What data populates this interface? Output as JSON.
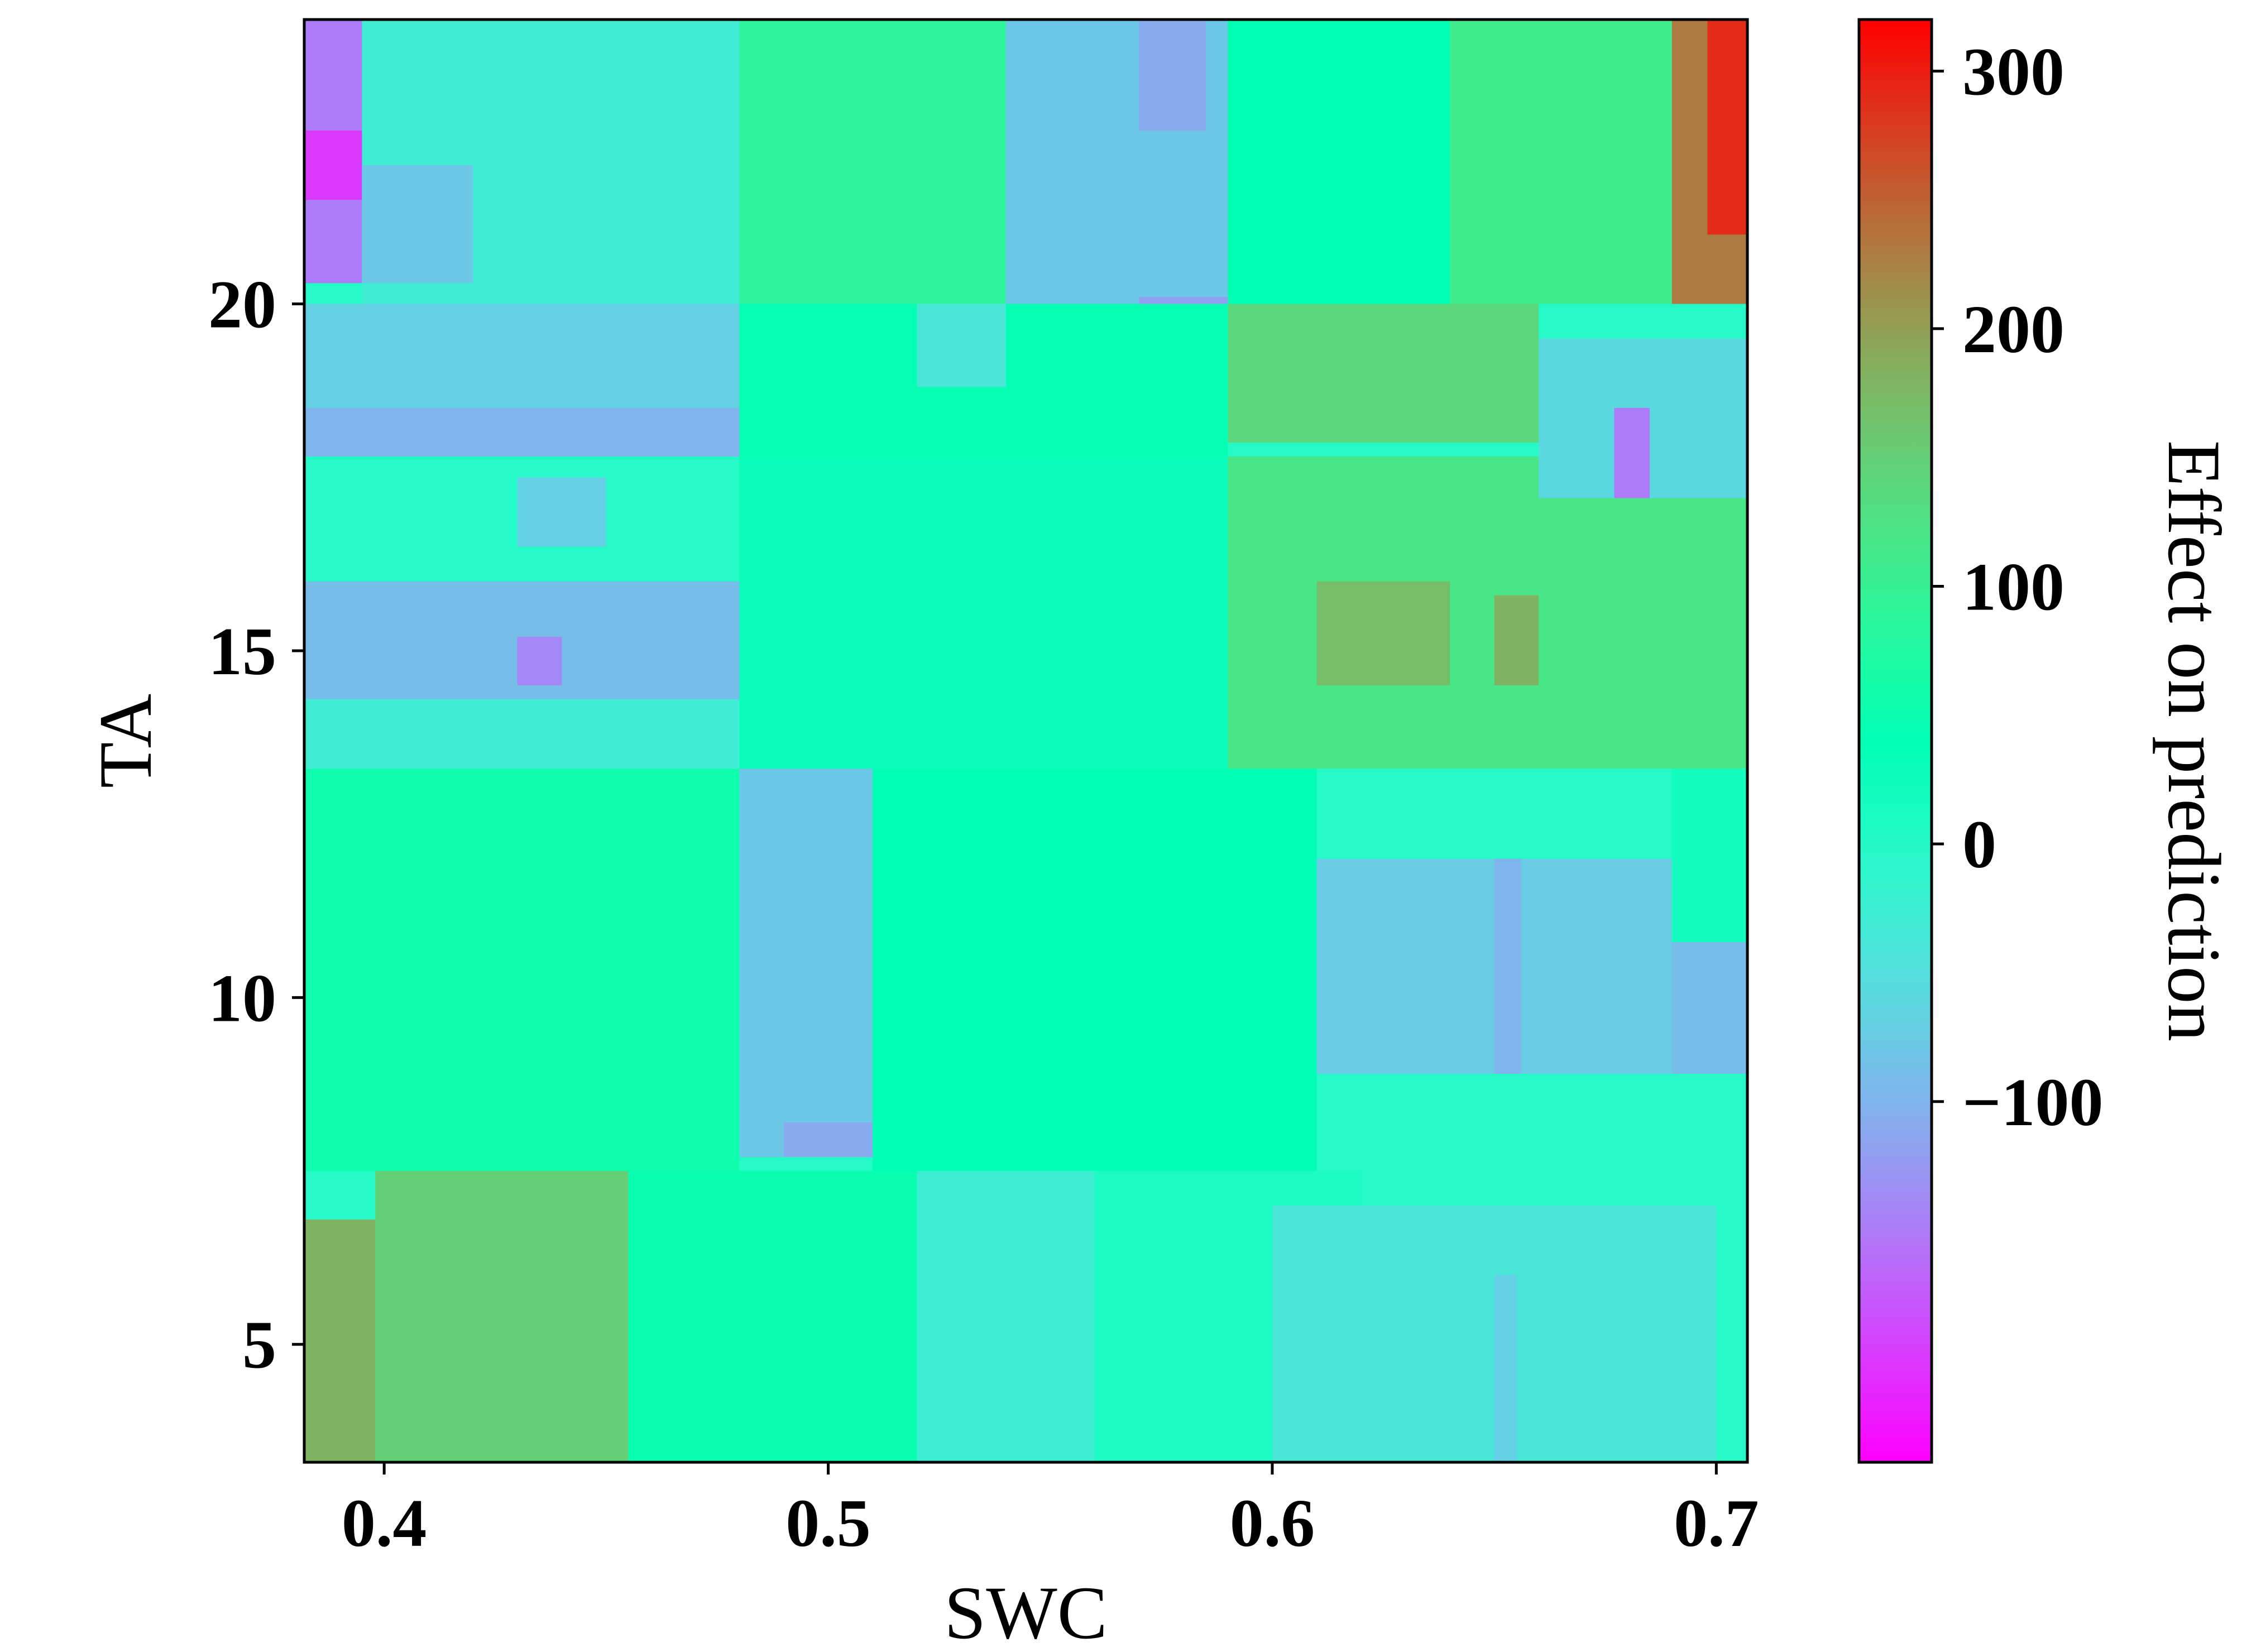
{
  "chart_data": {
    "type": "heatmap",
    "title": "",
    "xlabel": "SWC",
    "ylabel": "TA",
    "colorbar_label": "Effect on prediction",
    "xlim": [
      0.382,
      0.707
    ],
    "ylim": [
      3.3,
      24.1
    ],
    "x_ticks": [
      0.4,
      0.5,
      0.6,
      0.7
    ],
    "x_tick_labels": [
      "0.4",
      "0.5",
      "0.6",
      "0.7"
    ],
    "y_ticks": [
      5,
      10,
      15,
      20
    ],
    "y_tick_labels": [
      "5",
      "10",
      "15",
      "20"
    ],
    "colorbar_range": [
      -240,
      320
    ],
    "colorbar_ticks": [
      -100,
      0,
      100,
      200,
      300
    ],
    "colorbar_tick_labels": [
      "−100",
      "0",
      "100",
      "200",
      "300"
    ],
    "colormap": "rainbow",
    "regions": [
      {
        "x": [
          0.382,
          0.707
        ],
        "y": [
          3.3,
          24.1
        ],
        "value": 0
      },
      {
        "x": [
          0.382,
          0.398
        ],
        "y": [
          3.3,
          6.8
        ],
        "value": 180
      },
      {
        "x": [
          0.398,
          0.455
        ],
        "y": [
          3.3,
          7.5
        ],
        "value": 150
      },
      {
        "x": [
          0.455,
          0.52
        ],
        "y": [
          3.3,
          7.5
        ],
        "value": 50
      },
      {
        "x": [
          0.52,
          0.62
        ],
        "y": [
          3.3,
          7.5
        ],
        "value": 10
      },
      {
        "x": [
          0.52,
          0.56
        ],
        "y": [
          3.3,
          7.5
        ],
        "value": -25
      },
      {
        "x": [
          0.6,
          0.7
        ],
        "y": [
          3.3,
          7.0
        ],
        "value": -40
      },
      {
        "x": [
          0.65,
          0.655
        ],
        "y": [
          3.3,
          6.0
        ],
        "value": -70
      },
      {
        "x": [
          0.382,
          0.48
        ],
        "y": [
          7.5,
          13.3
        ],
        "value": 55
      },
      {
        "x": [
          0.48,
          0.51
        ],
        "y": [
          7.7,
          13.5
        ],
        "value": -80
      },
      {
        "x": [
          0.49,
          0.51
        ],
        "y": [
          7.7,
          8.2
        ],
        "value": -110
      },
      {
        "x": [
          0.51,
          0.61
        ],
        "y": [
          7.5,
          13.3
        ],
        "value": 40
      },
      {
        "x": [
          0.61,
          0.69
        ],
        "y": [
          8.9,
          12.0
        ],
        "value": -75
      },
      {
        "x": [
          0.65,
          0.656
        ],
        "y": [
          8.9,
          12.0
        ],
        "value": -100
      },
      {
        "x": [
          0.69,
          0.707
        ],
        "y": [
          8.9,
          10.8
        ],
        "value": -90
      },
      {
        "x": [
          0.69,
          0.707
        ],
        "y": [
          10.8,
          13.3
        ],
        "value": 20
      },
      {
        "x": [
          0.382,
          0.48
        ],
        "y": [
          13.3,
          14.3
        ],
        "value": -30
      },
      {
        "x": [
          0.382,
          0.48
        ],
        "y": [
          14.3,
          16.0
        ],
        "value": -90
      },
      {
        "x": [
          0.43,
          0.44
        ],
        "y": [
          14.5,
          15.2
        ],
        "value": -140
      },
      {
        "x": [
          0.48,
          0.59
        ],
        "y": [
          13.3,
          17.8
        ],
        "value": 30
      },
      {
        "x": [
          0.59,
          0.707
        ],
        "y": [
          13.3,
          17.8
        ],
        "value": 120
      },
      {
        "x": [
          0.61,
          0.64
        ],
        "y": [
          14.5,
          16.0
        ],
        "value": 170
      },
      {
        "x": [
          0.65,
          0.66
        ],
        "y": [
          14.5,
          15.8
        ],
        "value": 180
      },
      {
        "x": [
          0.43,
          0.45
        ],
        "y": [
          16.5,
          17.5
        ],
        "value": -70
      },
      {
        "x": [
          0.382,
          0.48
        ],
        "y": [
          17.8,
          18.5
        ],
        "value": -100
      },
      {
        "x": [
          0.382,
          0.48
        ],
        "y": [
          18.5,
          20.0
        ],
        "value": -70
      },
      {
        "x": [
          0.48,
          0.59
        ],
        "y": [
          17.8,
          20.0
        ],
        "value": 45
      },
      {
        "x": [
          0.52,
          0.54
        ],
        "y": [
          18.8,
          20.0
        ],
        "value": -40
      },
      {
        "x": [
          0.59,
          0.66
        ],
        "y": [
          18.0,
          20.0
        ],
        "value": 140
      },
      {
        "x": [
          0.66,
          0.707
        ],
        "y": [
          17.2,
          19.5
        ],
        "value": -60
      },
      {
        "x": [
          0.677,
          0.685
        ],
        "y": [
          17.2,
          18.5
        ],
        "value": -150
      },
      {
        "x": [
          0.382,
          0.395
        ],
        "y": [
          20.3,
          24.1
        ],
        "value": -150
      },
      {
        "x": [
          0.382,
          0.395
        ],
        "y": [
          21.5,
          22.5
        ],
        "value": -200
      },
      {
        "x": [
          0.395,
          0.48
        ],
        "y": [
          20.0,
          24.1
        ],
        "value": -30
      },
      {
        "x": [
          0.395,
          0.42
        ],
        "y": [
          20.3,
          22.0
        ],
        "value": -80
      },
      {
        "x": [
          0.48,
          0.54
        ],
        "y": [
          20.0,
          24.1
        ],
        "value": 90
      },
      {
        "x": [
          0.54,
          0.59
        ],
        "y": [
          20.0,
          24.1
        ],
        "value": -80
      },
      {
        "x": [
          0.57,
          0.59
        ],
        "y": [
          20.0,
          20.1
        ],
        "value": -120
      },
      {
        "x": [
          0.57,
          0.585
        ],
        "y": [
          22.5,
          24.1
        ],
        "value": -110
      },
      {
        "x": [
          0.59,
          0.64
        ],
        "y": [
          20.0,
          24.1
        ],
        "value": 40
      },
      {
        "x": [
          0.64,
          0.69
        ],
        "y": [
          20.0,
          24.1
        ],
        "value": 110
      },
      {
        "x": [
          0.69,
          0.707
        ],
        "y": [
          20.0,
          24.1
        ],
        "value": 230
      },
      {
        "x": [
          0.698,
          0.707
        ],
        "y": [
          21.0,
          24.1
        ],
        "value": 290
      }
    ]
  }
}
